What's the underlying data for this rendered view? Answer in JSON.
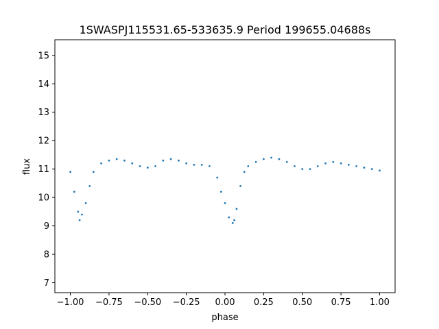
{
  "chart_data": {
    "type": "scatter",
    "title": "1SWASPJ115531.65-533635.9 Period 199655.04688s",
    "xlabel": "phase",
    "ylabel": "flux",
    "xlim": [
      -1.1,
      1.1
    ],
    "ylim": [
      6.65,
      15.55
    ],
    "x_ticks": [
      -1.0,
      -0.75,
      -0.5,
      -0.25,
      0.0,
      0.25,
      0.5,
      0.75,
      1.0
    ],
    "x_tick_labels": [
      "−1.00",
      "−0.75",
      "−0.50",
      "−0.25",
      "0.00",
      "0.25",
      "0.50",
      "0.75",
      "1.00"
    ],
    "y_ticks": [
      7,
      8,
      9,
      10,
      11,
      12,
      13,
      14,
      15
    ],
    "y_tick_labels": [
      "7",
      "8",
      "9",
      "10",
      "11",
      "12",
      "13",
      "14",
      "15"
    ],
    "grid": false,
    "legend": "none",
    "point_color": "#1f77b4",
    "series": [
      {
        "x": [
          -1.0,
          -0.975,
          -0.95,
          -0.94,
          -0.925,
          -0.9,
          -0.875,
          -0.85,
          -0.8,
          -0.75,
          -0.7,
          -0.65,
          -0.6,
          -0.55,
          -0.5,
          -0.45,
          -0.4,
          -0.35,
          -0.3,
          -0.25,
          -0.2,
          -0.15,
          -0.1,
          -0.05,
          -0.025,
          0.0,
          0.025,
          0.05,
          0.06,
          0.075,
          0.1,
          0.125,
          0.15,
          0.2,
          0.25,
          0.3,
          0.35,
          0.4,
          0.45,
          0.5,
          0.55,
          0.6,
          0.65,
          0.7,
          0.75,
          0.8,
          0.85,
          0.9,
          0.95,
          1.0
        ],
        "y": [
          10.9,
          10.2,
          9.5,
          9.2,
          9.4,
          9.8,
          10.4,
          10.9,
          11.2,
          11.3,
          11.35,
          11.3,
          11.2,
          11.1,
          11.05,
          11.1,
          11.3,
          11.35,
          11.3,
          11.2,
          11.15,
          11.15,
          11.1,
          10.7,
          10.2,
          9.8,
          9.3,
          9.1,
          9.2,
          9.6,
          10.4,
          10.9,
          11.1,
          11.25,
          11.35,
          11.4,
          11.35,
          11.25,
          11.1,
          11.0,
          11.0,
          11.1,
          11.2,
          11.25,
          11.2,
          11.15,
          11.1,
          11.05,
          11.0,
          10.95
        ]
      }
    ]
  }
}
